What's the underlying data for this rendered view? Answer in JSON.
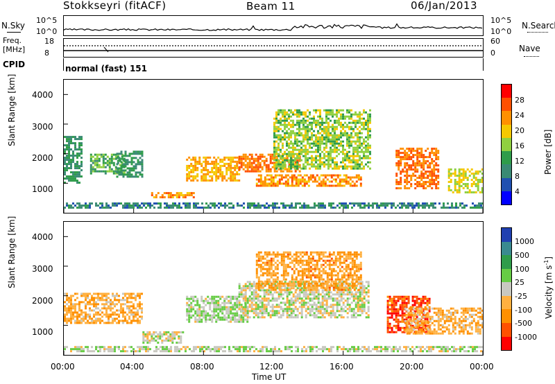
{
  "header": {
    "station": "Stokkseyri (fitACF)",
    "beam": "Beam 11",
    "date": "06/Jan/2013"
  },
  "noise_panel": {
    "left_label": "N.Sky",
    "right_label": "N.Search",
    "ticks": [
      "10^5",
      "10^0"
    ]
  },
  "freq_panel": {
    "left_label_1": "Freq.",
    "left_label_2": "[MHz]",
    "left_ticks": [
      "18",
      "8"
    ],
    "right_label": "Nave",
    "right_ticks": [
      "60",
      "0"
    ]
  },
  "cpid": {
    "label": "CPID",
    "value": "normal (fast) 151"
  },
  "power_panel": {
    "ylabel": "Slant Range [km]",
    "yticks": [
      "4000",
      "3000",
      "2000",
      "1000"
    ],
    "colorbar_label": "Power [dB]",
    "colorbar_ticks": [
      "28",
      "24",
      "20",
      "16",
      "12",
      "8",
      "4"
    ],
    "colors": [
      "#ff0000",
      "#ff5000",
      "#ff9000",
      "#f5c800",
      "#90d040",
      "#2f9c4a",
      "#3a8a74",
      "#2050b0",
      "#0000ff"
    ]
  },
  "velocity_panel": {
    "ylabel": "Slant Range [km]",
    "yticks": [
      "4000",
      "3000",
      "2000",
      "1000"
    ],
    "colorbar_label": "Velocity  [m s",
    "colorbar_label_sup": "-1",
    "colorbar_label_end": "]",
    "colorbar_ticks": [
      "1000",
      "500",
      "100",
      "25",
      "-25",
      "-100",
      "-500",
      "-1000"
    ],
    "colors": [
      "#2040b0",
      "#3a8a90",
      "#2f9c4a",
      "#66cc44",
      "#c8c8c0",
      "#ffb040",
      "#ff9000",
      "#ff5000",
      "#ff0000"
    ]
  },
  "xaxis": {
    "ticks": [
      "00:00",
      "04:00",
      "08:00",
      "12:00",
      "16:00",
      "20:00",
      "00:00"
    ],
    "label": "Time UT"
  },
  "chart_data": {
    "type": "heatmap",
    "title": "Stokkseyri (fitACF)  Beam 11  06/Jan/2013",
    "xlabel": "Time UT",
    "ylabel": "Slant Range [km]",
    "xlim": [
      0,
      24
    ],
    "ylim": [
      0,
      4500
    ],
    "panels": [
      {
        "name": "Power [dB]",
        "colorbar_range": [
          0,
          32
        ],
        "regions": [
          {
            "t0": 0.0,
            "t1": 1.0,
            "r0": 1000,
            "r1": 2600,
            "value": 10
          },
          {
            "t0": 1.5,
            "t1": 3.5,
            "r0": 1300,
            "r1": 2000,
            "value": 12
          },
          {
            "t0": 3.0,
            "t1": 4.5,
            "r0": 1200,
            "r1": 2100,
            "value": 10
          },
          {
            "t0": 5.0,
            "t1": 7.5,
            "r0": 500,
            "r1": 700,
            "value": 24
          },
          {
            "t0": 7.0,
            "t1": 10.0,
            "r0": 1100,
            "r1": 1900,
            "value": 22
          },
          {
            "t0": 10.0,
            "t1": 13.5,
            "r0": 1400,
            "r1": 2000,
            "value": 26
          },
          {
            "t0": 11.0,
            "t1": 17.0,
            "r0": 900,
            "r1": 1300,
            "value": 24
          },
          {
            "t0": 12.0,
            "t1": 17.5,
            "r0": 1500,
            "r1": 3500,
            "value": 16
          },
          {
            "t0": 19.0,
            "t1": 21.5,
            "r0": 800,
            "r1": 2200,
            "value": 26
          },
          {
            "t0": 22.0,
            "t1": 24.0,
            "r0": 700,
            "r1": 1500,
            "value": 18
          },
          {
            "t0": 0.0,
            "t1": 24.0,
            "r0": 150,
            "r1": 350,
            "value": 8
          }
        ]
      },
      {
        "name": "Velocity [m s-1]",
        "colorbar_range": [
          -1000,
          1000
        ],
        "regions": [
          {
            "t0": 0.0,
            "t1": 4.5,
            "r0": 1100,
            "r1": 2100,
            "value": -300
          },
          {
            "t0": 4.5,
            "t1": 7.0,
            "r0": 400,
            "r1": 800,
            "value": 0
          },
          {
            "t0": 7.0,
            "t1": 10.5,
            "r0": 1100,
            "r1": 2000,
            "value": 100
          },
          {
            "t0": 10.0,
            "t1": 17.5,
            "r0": 1300,
            "r1": 2500,
            "value": 0
          },
          {
            "t0": 18.5,
            "t1": 21.0,
            "r0": 800,
            "r1": 2000,
            "value": -800
          },
          {
            "t0": 19.5,
            "t1": 24.0,
            "r0": 700,
            "r1": 1600,
            "value": -300
          },
          {
            "t0": 11.0,
            "t1": 17.0,
            "r0": 2200,
            "r1": 3500,
            "value": -400
          },
          {
            "t0": 0.0,
            "t1": 24.0,
            "r0": 150,
            "r1": 300,
            "value": 50
          }
        ]
      }
    ]
  }
}
